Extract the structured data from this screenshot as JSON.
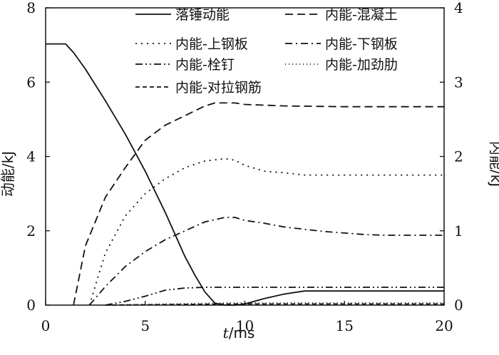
{
  "chart_data": {
    "type": "line",
    "xlabel": "t/ms",
    "xlabel_var": "t",
    "xlabel_unit": "/ms",
    "ylabel_left": "动能/kJ",
    "ylabel_right": "内能/kJ",
    "xlim": [
      0,
      20
    ],
    "ylim_left": [
      0,
      8
    ],
    "ylim_right": [
      0,
      4
    ],
    "xticks": [
      0,
      5,
      10,
      15,
      20
    ],
    "yticks_left": [
      0,
      2,
      4,
      6,
      8
    ],
    "yticks_right": [
      0,
      1,
      2,
      3,
      4
    ],
    "grid": false,
    "legend_position": "top",
    "series": [
      {
        "name": "落锤动能",
        "axis": "left",
        "dash": "",
        "x": [
          0,
          1.0,
          1.4,
          2,
          3,
          4,
          5,
          6,
          7,
          7.5,
          8,
          8.5,
          9,
          9.5,
          10,
          11,
          12,
          13,
          14,
          15,
          17,
          20
        ],
        "y": [
          7.03,
          7.03,
          6.8,
          6.35,
          5.5,
          4.6,
          3.6,
          2.5,
          1.3,
          0.8,
          0.35,
          0.05,
          0.0,
          0.0,
          0.03,
          0.18,
          0.3,
          0.38,
          0.38,
          0.38,
          0.38,
          0.38
        ]
      },
      {
        "name": "内能-混凝土",
        "axis": "right",
        "dash": "11,6",
        "x": [
          1.4,
          2,
          3,
          4,
          5,
          6,
          7,
          8,
          8.5,
          9,
          9.5,
          10,
          12,
          15,
          20
        ],
        "y": [
          0,
          0.8,
          1.45,
          1.85,
          2.22,
          2.42,
          2.55,
          2.68,
          2.72,
          2.72,
          2.72,
          2.7,
          2.68,
          2.67,
          2.67
        ]
      },
      {
        "name": "内能-上钢板",
        "axis": "right",
        "dash": "2,6",
        "x": [
          2.2,
          3,
          4,
          5,
          6,
          7,
          8,
          9,
          9.5,
          10,
          11,
          12,
          13,
          14,
          15,
          20
        ],
        "y": [
          0,
          0.7,
          1.2,
          1.5,
          1.7,
          1.85,
          1.94,
          1.97,
          1.95,
          1.88,
          1.8,
          1.78,
          1.75,
          1.75,
          1.75,
          1.75
        ]
      },
      {
        "name": "内能-下钢板",
        "axis": "right",
        "dash": "10,5,2,5",
        "x": [
          2.2,
          3,
          4,
          5,
          6,
          7,
          8,
          9,
          9.5,
          10,
          11,
          12,
          13,
          14,
          15,
          16,
          17,
          20
        ],
        "y": [
          0,
          0.25,
          0.52,
          0.72,
          0.88,
          1.0,
          1.12,
          1.18,
          1.18,
          1.14,
          1.1,
          1.05,
          1.02,
          0.99,
          0.97,
          0.95,
          0.94,
          0.94
        ]
      },
      {
        "name": "内能-栓钉",
        "axis": "right",
        "dash": "10,4,2,4,2,4",
        "x": [
          3,
          4,
          5,
          6,
          7,
          8,
          9,
          10,
          15,
          20
        ],
        "y": [
          0,
          0.05,
          0.12,
          0.2,
          0.23,
          0.24,
          0.24,
          0.24,
          0.24,
          0.24
        ]
      },
      {
        "name": "内能-加劲肋",
        "axis": "right",
        "dash": "1,4",
        "x": [
          3,
          5,
          7,
          9,
          10,
          15,
          20
        ],
        "y": [
          0,
          0.01,
          0.02,
          0.03,
          0.03,
          0.03,
          0.03
        ]
      },
      {
        "name": "内能-对拉钢筋",
        "axis": "right",
        "dash": "6,4",
        "x": [
          3,
          5,
          7,
          9,
          10,
          15,
          20
        ],
        "y": [
          0,
          0.005,
          0.01,
          0.015,
          0.015,
          0.015,
          0.015
        ]
      }
    ]
  }
}
